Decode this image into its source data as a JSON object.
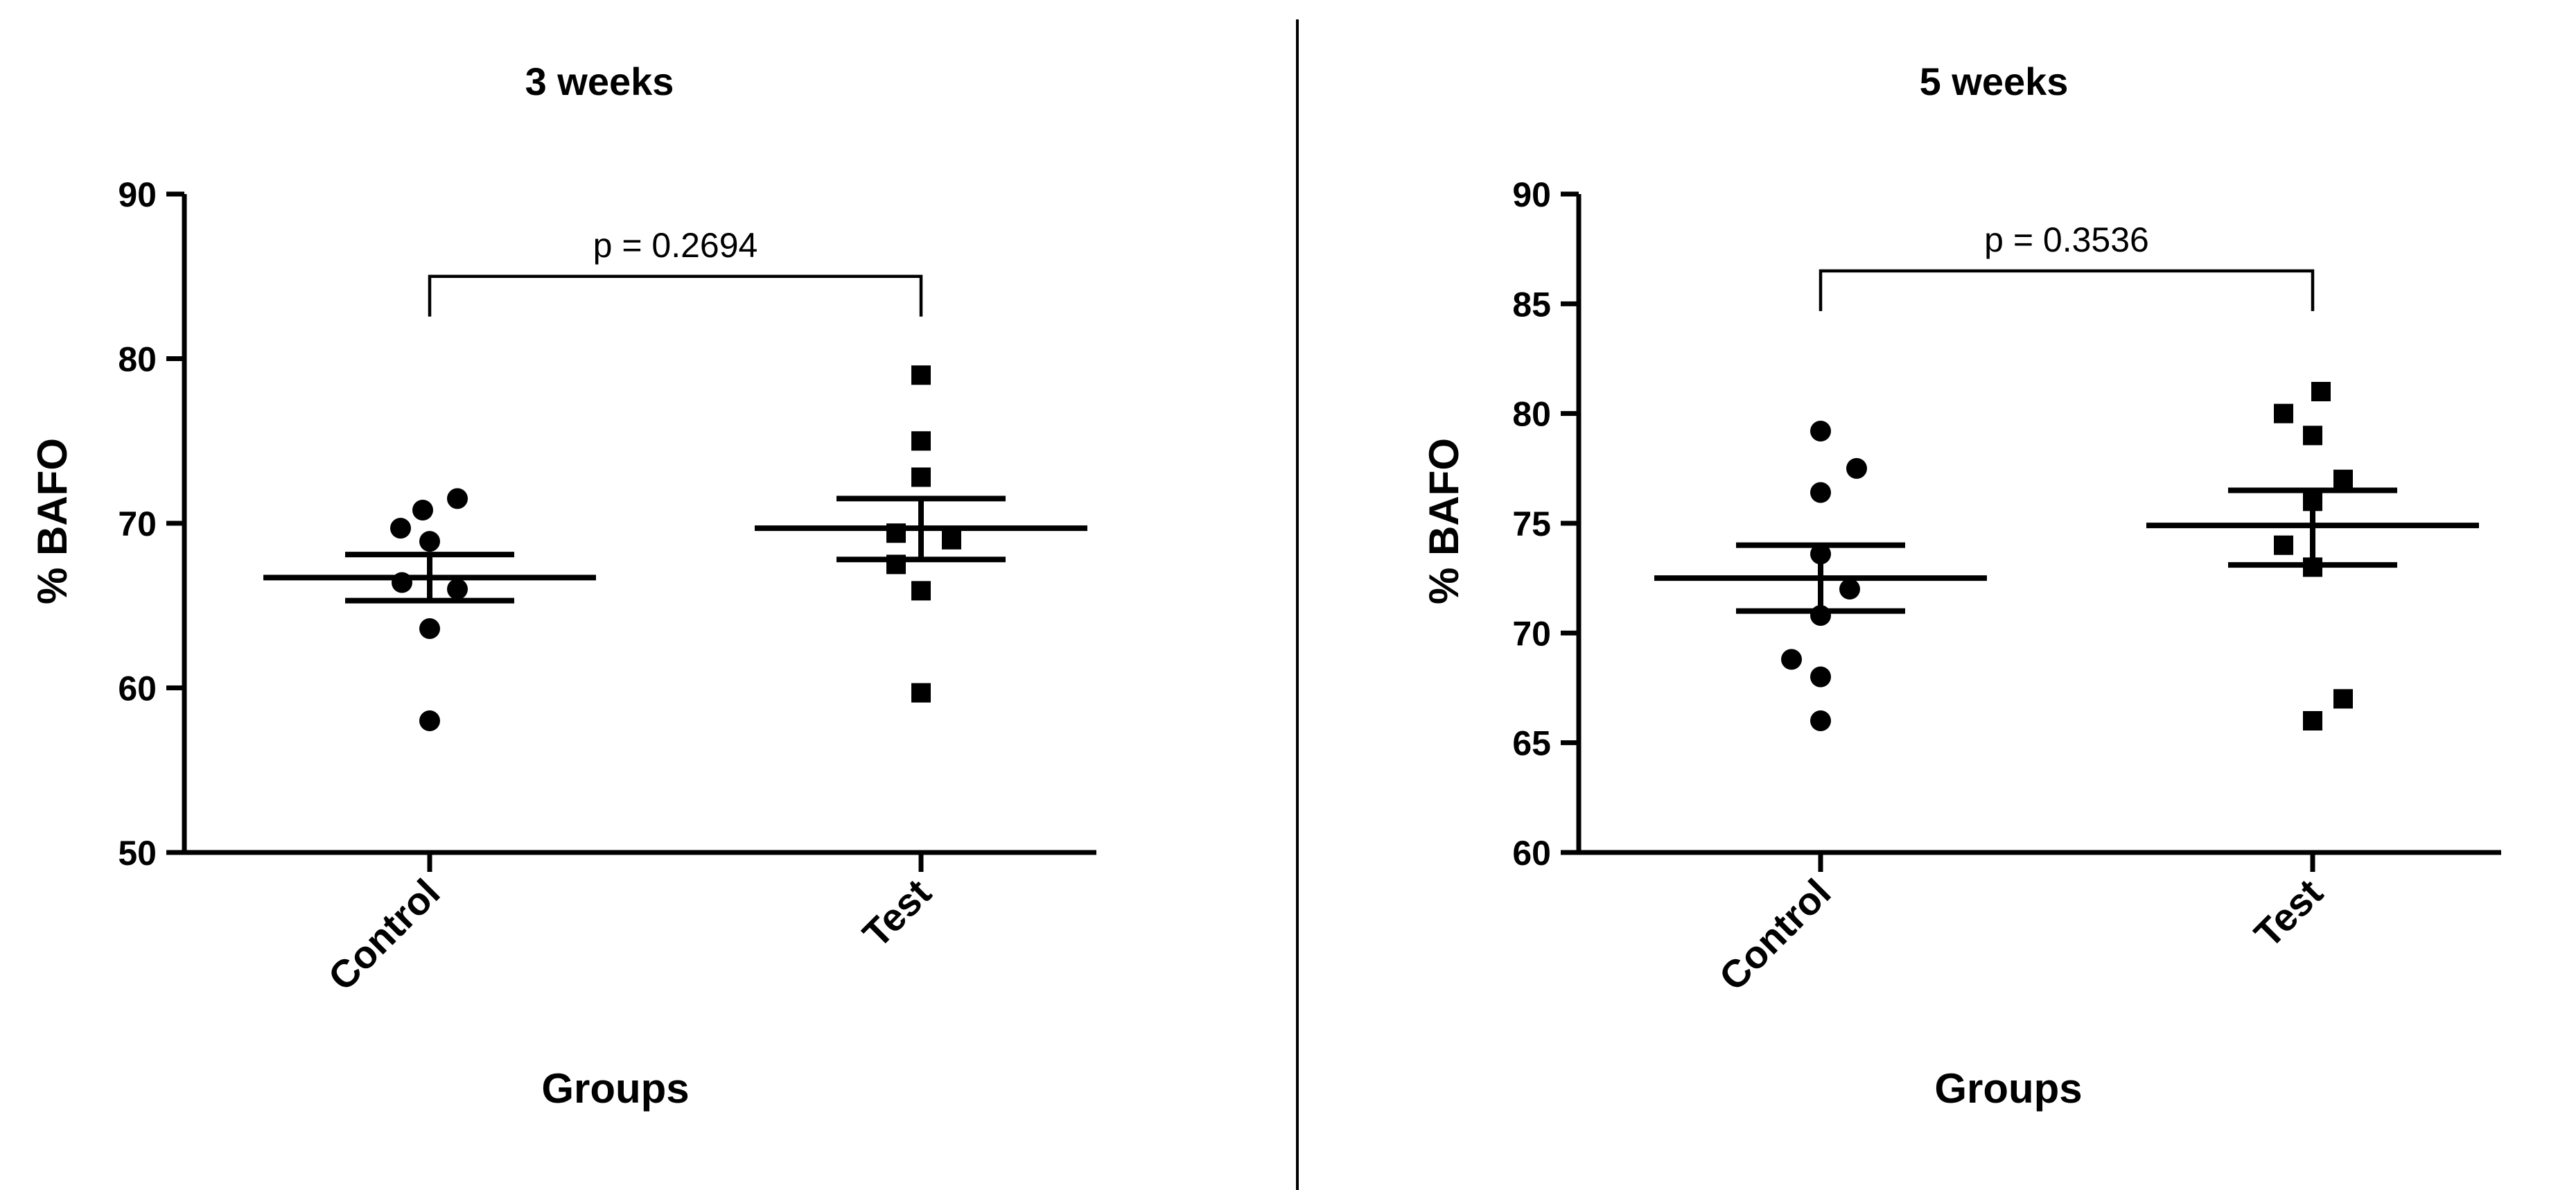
{
  "chart_data": [
    {
      "type": "scatter",
      "title": "3 weeks",
      "xlabel": "Groups",
      "ylabel": "% BAFO",
      "ylim": [
        50,
        90
      ],
      "yticks": [
        50,
        60,
        70,
        80,
        90
      ],
      "categories": [
        "Control",
        "Test"
      ],
      "groups": [
        {
          "category": "Control",
          "marker": "circle",
          "values": [
            71.5,
            70.8,
            69.7,
            68.9,
            66.4,
            66.0,
            63.6,
            58.0
          ],
          "mean": 66.7,
          "sem_low": 65.3,
          "sem_high": 68.1
        },
        {
          "category": "Test",
          "marker": "square",
          "values": [
            79.0,
            75.0,
            72.8,
            69.4,
            69.0,
            67.5,
            65.9,
            59.7
          ],
          "mean": 69.7,
          "sem_low": 67.8,
          "sem_high": 71.5
        }
      ],
      "annotation": "p = 0.2694",
      "annotation_level": 85
    },
    {
      "type": "scatter",
      "title": "5 weeks",
      "xlabel": "Groups",
      "ylabel": "% BAFO",
      "ylim": [
        60,
        90
      ],
      "yticks": [
        60,
        65,
        70,
        75,
        80,
        85,
        90
      ],
      "categories": [
        "Control",
        "Test"
      ],
      "groups": [
        {
          "category": "Control",
          "marker": "circle",
          "values": [
            79.2,
            77.5,
            76.4,
            73.6,
            72.0,
            70.8,
            68.8,
            68.0,
            66.0
          ],
          "mean": 72.5,
          "sem_low": 71.0,
          "sem_high": 74.0
        },
        {
          "category": "Test",
          "marker": "square",
          "values": [
            81.0,
            80.0,
            79.0,
            77.0,
            76.0,
            74.0,
            73.0,
            67.0,
            66.0
          ],
          "mean": 74.9,
          "sem_low": 73.1,
          "sem_high": 76.5
        }
      ],
      "annotation": "p = 0.3536",
      "annotation_level": 86.5
    }
  ]
}
